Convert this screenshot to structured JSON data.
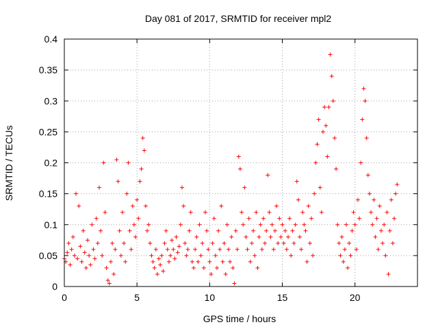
{
  "chart_data": {
    "type": "scatter",
    "title": "Day 081 of 2017, SRMTID for receiver mpl2",
    "xlabel": "GPS time / hours",
    "ylabel": "SRMTID / TECUs",
    "xlim": [
      0,
      24.3
    ],
    "ylim": [
      0,
      0.4
    ],
    "xticks": [
      0,
      5,
      10,
      15,
      20
    ],
    "xtick_labels": [
      "0",
      "5",
      "10",
      "15",
      "20"
    ],
    "yticks": [
      0,
      0.05,
      0.1,
      0.15,
      0.2,
      0.25,
      0.3,
      0.35,
      0.4
    ],
    "ytick_labels": [
      "0",
      "0.05",
      "0.1",
      "0.15",
      "0.2",
      "0.25",
      "0.3",
      "0.35",
      "0.4"
    ],
    "grid": true,
    "marker": "+",
    "color": "#ff0000",
    "points": [
      [
        0.0,
        0.045
      ],
      [
        0.1,
        0.04
      ],
      [
        0.2,
        0.055
      ],
      [
        0.3,
        0.07
      ],
      [
        0.4,
        0.035
      ],
      [
        0.5,
        0.06
      ],
      [
        0.6,
        0.08
      ],
      [
        0.7,
        0.05
      ],
      [
        0.8,
        0.15
      ],
      [
        0.9,
        0.045
      ],
      [
        1.0,
        0.13
      ],
      [
        1.1,
        0.065
      ],
      [
        1.2,
        0.04
      ],
      [
        1.3,
        0.09
      ],
      [
        1.4,
        0.055
      ],
      [
        1.5,
        0.03
      ],
      [
        1.6,
        0.075
      ],
      [
        1.7,
        0.05
      ],
      [
        1.8,
        0.035
      ],
      [
        1.9,
        0.1
      ],
      [
        2.0,
        0.06
      ],
      [
        2.1,
        0.045
      ],
      [
        2.2,
        0.11
      ],
      [
        2.3,
        0.07
      ],
      [
        2.4,
        0.16
      ],
      [
        2.5,
        0.09
      ],
      [
        2.6,
        0.05
      ],
      [
        2.7,
        0.2
      ],
      [
        2.8,
        0.12
      ],
      [
        2.9,
        0.03
      ],
      [
        3.0,
        0.01
      ],
      [
        3.1,
        0.005
      ],
      [
        3.2,
        0.04
      ],
      [
        3.3,
        0.07
      ],
      [
        3.4,
        0.02
      ],
      [
        3.5,
        0.06
      ],
      [
        3.6,
        0.205
      ],
      [
        3.7,
        0.17
      ],
      [
        3.8,
        0.09
      ],
      [
        3.9,
        0.05
      ],
      [
        4.0,
        0.12
      ],
      [
        4.1,
        0.07
      ],
      [
        4.2,
        0.04
      ],
      [
        4.3,
        0.15
      ],
      [
        4.4,
        0.2
      ],
      [
        4.5,
        0.09
      ],
      [
        4.6,
        0.06
      ],
      [
        4.7,
        0.13
      ],
      [
        4.8,
        0.1
      ],
      [
        4.9,
        0.08
      ],
      [
        5.0,
        0.14
      ],
      [
        5.1,
        0.11
      ],
      [
        5.2,
        0.17
      ],
      [
        5.3,
        0.19
      ],
      [
        5.4,
        0.24
      ],
      [
        5.5,
        0.22
      ],
      [
        5.6,
        0.13
      ],
      [
        5.7,
        0.09
      ],
      [
        5.8,
        0.1
      ],
      [
        5.9,
        0.07
      ],
      [
        6.0,
        0.05
      ],
      [
        6.1,
        0.04
      ],
      [
        6.2,
        0.03
      ],
      [
        6.3,
        0.06
      ],
      [
        6.4,
        0.02
      ],
      [
        6.5,
        0.045
      ],
      [
        6.6,
        0.035
      ],
      [
        6.7,
        0.05
      ],
      [
        6.8,
        0.025
      ],
      [
        6.9,
        0.07
      ],
      [
        7.0,
        0.09
      ],
      [
        7.1,
        0.06
      ],
      [
        7.2,
        0.04
      ],
      [
        7.3,
        0.05
      ],
      [
        7.4,
        0.075
      ],
      [
        7.5,
        0.06
      ],
      [
        7.6,
        0.045
      ],
      [
        7.7,
        0.08
      ],
      [
        7.8,
        0.055
      ],
      [
        7.9,
        0.065
      ],
      [
        8.0,
        0.1
      ],
      [
        8.1,
        0.16
      ],
      [
        8.2,
        0.13
      ],
      [
        8.3,
        0.07
      ],
      [
        8.4,
        0.05
      ],
      [
        8.5,
        0.06
      ],
      [
        8.6,
        0.09
      ],
      [
        8.7,
        0.12
      ],
      [
        8.8,
        0.04
      ],
      [
        8.9,
        0.03
      ],
      [
        9.0,
        0.06
      ],
      [
        9.1,
        0.08
      ],
      [
        9.2,
        0.04
      ],
      [
        9.3,
        0.1
      ],
      [
        9.4,
        0.05
      ],
      [
        9.5,
        0.07
      ],
      [
        9.6,
        0.03
      ],
      [
        9.7,
        0.12
      ],
      [
        9.8,
        0.09
      ],
      [
        9.9,
        0.06
      ],
      [
        10.0,
        0.04
      ],
      [
        10.1,
        0.02
      ],
      [
        10.2,
        0.07
      ],
      [
        10.3,
        0.11
      ],
      [
        10.4,
        0.05
      ],
      [
        10.5,
        0.03
      ],
      [
        10.6,
        0.09
      ],
      [
        10.7,
        0.06
      ],
      [
        10.8,
        0.13
      ],
      [
        10.9,
        0.04
      ],
      [
        11.0,
        0.07
      ],
      [
        11.1,
        0.02
      ],
      [
        11.2,
        0.1
      ],
      [
        11.3,
        0.06
      ],
      [
        11.4,
        0.04
      ],
      [
        11.5,
        0.08
      ],
      [
        11.6,
        0.03
      ],
      [
        11.7,
        0.005
      ],
      [
        11.8,
        0.09
      ],
      [
        11.9,
        0.06
      ],
      [
        12.0,
        0.21
      ],
      [
        12.1,
        0.19
      ],
      [
        12.2,
        0.12
      ],
      [
        12.3,
        0.1
      ],
      [
        12.4,
        0.16
      ],
      [
        12.5,
        0.08
      ],
      [
        12.6,
        0.06
      ],
      [
        12.7,
        0.11
      ],
      [
        12.8,
        0.04
      ],
      [
        12.9,
        0.07
      ],
      [
        13.0,
        0.09
      ],
      [
        13.1,
        0.05
      ],
      [
        13.2,
        0.12
      ],
      [
        13.3,
        0.03
      ],
      [
        13.4,
        0.08
      ],
      [
        13.5,
        0.1
      ],
      [
        13.6,
        0.06
      ],
      [
        13.7,
        0.11
      ],
      [
        13.8,
        0.07
      ],
      [
        13.9,
        0.09
      ],
      [
        14.0,
        0.18
      ],
      [
        14.1,
        0.12
      ],
      [
        14.2,
        0.08
      ],
      [
        14.3,
        0.1
      ],
      [
        14.4,
        0.06
      ],
      [
        14.5,
        0.09
      ],
      [
        14.6,
        0.13
      ],
      [
        14.7,
        0.07
      ],
      [
        14.8,
        0.11
      ],
      [
        14.9,
        0.08
      ],
      [
        15.0,
        0.1
      ],
      [
        15.1,
        0.07
      ],
      [
        15.2,
        0.09
      ],
      [
        15.3,
        0.06
      ],
      [
        15.4,
        0.08
      ],
      [
        15.5,
        0.11
      ],
      [
        15.6,
        0.05
      ],
      [
        15.7,
        0.09
      ],
      [
        15.8,
        0.07
      ],
      [
        15.9,
        0.1
      ],
      [
        16.0,
        0.17
      ],
      [
        16.1,
        0.14
      ],
      [
        16.2,
        0.08
      ],
      [
        16.3,
        0.06
      ],
      [
        16.4,
        0.12
      ],
      [
        16.5,
        0.1
      ],
      [
        16.6,
        0.09
      ],
      [
        16.7,
        0.04
      ],
      [
        16.8,
        0.13
      ],
      [
        16.9,
        0.07
      ],
      [
        17.0,
        0.11
      ],
      [
        17.1,
        0.05
      ],
      [
        17.2,
        0.15
      ],
      [
        17.3,
        0.2
      ],
      [
        17.4,
        0.23
      ],
      [
        17.5,
        0.27
      ],
      [
        17.6,
        0.16
      ],
      [
        17.7,
        0.12
      ],
      [
        17.8,
        0.25
      ],
      [
        17.9,
        0.29
      ],
      [
        18.0,
        0.26
      ],
      [
        18.1,
        0.21
      ],
      [
        18.2,
        0.29
      ],
      [
        18.3,
        0.375
      ],
      [
        18.4,
        0.34
      ],
      [
        18.5,
        0.3
      ],
      [
        18.6,
        0.24
      ],
      [
        18.7,
        0.19
      ],
      [
        18.8,
        0.1
      ],
      [
        18.9,
        0.07
      ],
      [
        19.0,
        0.05
      ],
      [
        19.1,
        0.08
      ],
      [
        19.2,
        0.04
      ],
      [
        19.3,
        0.06
      ],
      [
        19.4,
        0.1
      ],
      [
        19.5,
        0.03
      ],
      [
        19.6,
        0.07
      ],
      [
        19.7,
        0.05
      ],
      [
        19.8,
        0.09
      ],
      [
        19.9,
        0.12
      ],
      [
        20.0,
        0.1
      ],
      [
        20.1,
        0.06
      ],
      [
        20.2,
        0.14
      ],
      [
        20.3,
        0.11
      ],
      [
        20.4,
        0.2
      ],
      [
        20.5,
        0.27
      ],
      [
        20.6,
        0.32
      ],
      [
        20.7,
        0.3
      ],
      [
        20.8,
        0.24
      ],
      [
        20.9,
        0.18
      ],
      [
        21.0,
        0.15
      ],
      [
        21.1,
        0.12
      ],
      [
        21.2,
        0.1
      ],
      [
        21.3,
        0.14
      ],
      [
        21.4,
        0.08
      ],
      [
        21.5,
        0.11
      ],
      [
        21.6,
        0.06
      ],
      [
        21.7,
        0.13
      ],
      [
        21.8,
        0.09
      ],
      [
        21.9,
        0.07
      ],
      [
        22.0,
        0.1
      ],
      [
        22.1,
        0.05
      ],
      [
        22.2,
        0.12
      ],
      [
        22.3,
        0.02
      ],
      [
        22.4,
        0.09
      ],
      [
        22.5,
        0.14
      ],
      [
        22.6,
        0.07
      ],
      [
        22.7,
        0.11
      ],
      [
        22.8,
        0.15
      ],
      [
        22.9,
        0.165
      ]
    ]
  }
}
